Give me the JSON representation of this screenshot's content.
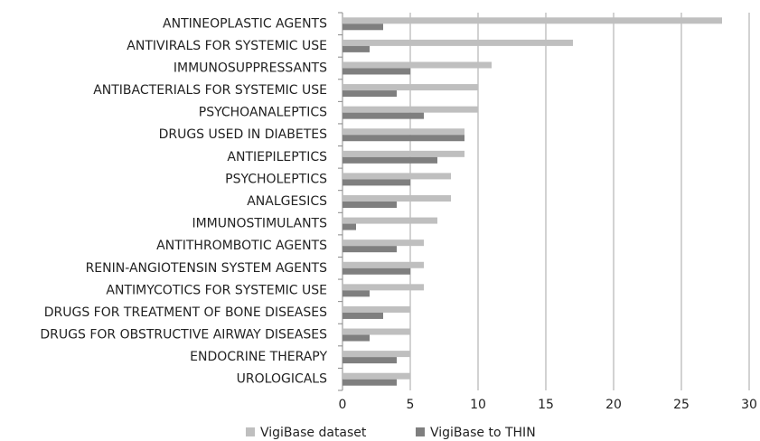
{
  "chart_data": {
    "type": "bar",
    "orientation": "horizontal",
    "categories": [
      "ANTINEOPLASTIC AGENTS",
      "ANTIVIRALS FOR SYSTEMIC USE",
      "IMMUNOSUPPRESSANTS",
      "ANTIBACTERIALS FOR SYSTEMIC USE",
      "PSYCHOANALEPTICS",
      "DRUGS USED IN DIABETES",
      "ANTIEPILEPTICS",
      "PSYCHOLEPTICS",
      "ANALGESICS",
      "IMMUNOSTIMULANTS",
      "ANTITHROMBOTIC AGENTS",
      "RENIN-ANGIOTENSIN SYSTEM AGENTS",
      "ANTIMYCOTICS FOR SYSTEMIC USE",
      "DRUGS FOR TREATMENT OF BONE DISEASES",
      "DRUGS FOR OBSTRUCTIVE AIRWAY DISEASES",
      "ENDOCRINE THERAPY",
      "UROLOGICALS"
    ],
    "series": [
      {
        "name": "VigiBase dataset",
        "color": "#bfbfbf",
        "values": [
          28,
          17,
          11,
          10,
          10,
          9,
          9,
          8,
          8,
          7,
          6,
          6,
          6,
          5,
          5,
          5,
          5
        ]
      },
      {
        "name": "VigiBase to THIN",
        "color": "#7f7f7f",
        "values": [
          3,
          2,
          5,
          4,
          6,
          9,
          7,
          5,
          4,
          1,
          4,
          5,
          2,
          3,
          2,
          4,
          4
        ]
      }
    ],
    "xlim": [
      0,
      30
    ],
    "xticks": [
      0,
      5,
      10,
      15,
      20,
      25,
      30
    ],
    "grid": true,
    "legend": "bottom"
  }
}
